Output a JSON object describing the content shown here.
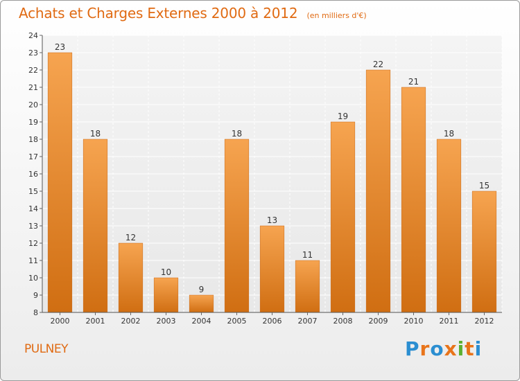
{
  "title": "Achats et Charges Externes 2000 à 2012",
  "unit": "(en milliers d'€)",
  "commune": "PULNEY",
  "logo": {
    "letters": [
      "P",
      "r",
      "o",
      "x",
      "i",
      "t",
      "i"
    ],
    "colors": [
      "#2b8ed1",
      "#e8741a",
      "#2b8ed1",
      "#e8741a",
      "#5bb030",
      "#e8741a",
      "#2b8ed1"
    ]
  },
  "colors": {
    "accent": "#e06a12",
    "bar_top": "#f6a450",
    "bar_bottom": "#d06e12"
  },
  "chart_data": {
    "type": "bar",
    "categories": [
      "2000",
      "2001",
      "2002",
      "2003",
      "2004",
      "2005",
      "2006",
      "2007",
      "2008",
      "2009",
      "2010",
      "2011",
      "2012"
    ],
    "values": [
      23,
      18,
      12,
      10,
      9,
      18,
      13,
      11,
      19,
      22,
      21,
      18,
      15
    ],
    "data_labels": [
      "23",
      "18",
      "12",
      "10",
      "9",
      "18",
      "13",
      "11",
      "19",
      "22",
      "21",
      "18",
      "15"
    ],
    "ylim": [
      8,
      24
    ],
    "yticks": [
      "8",
      "9",
      "10",
      "11",
      "12",
      "13",
      "14",
      "15",
      "16",
      "17",
      "18",
      "19",
      "20",
      "21",
      "22",
      "23",
      "24"
    ],
    "title": "Achats et Charges Externes 2000 à 2012",
    "xlabel": "",
    "ylabel": "",
    "grid": true,
    "legend": "none"
  }
}
